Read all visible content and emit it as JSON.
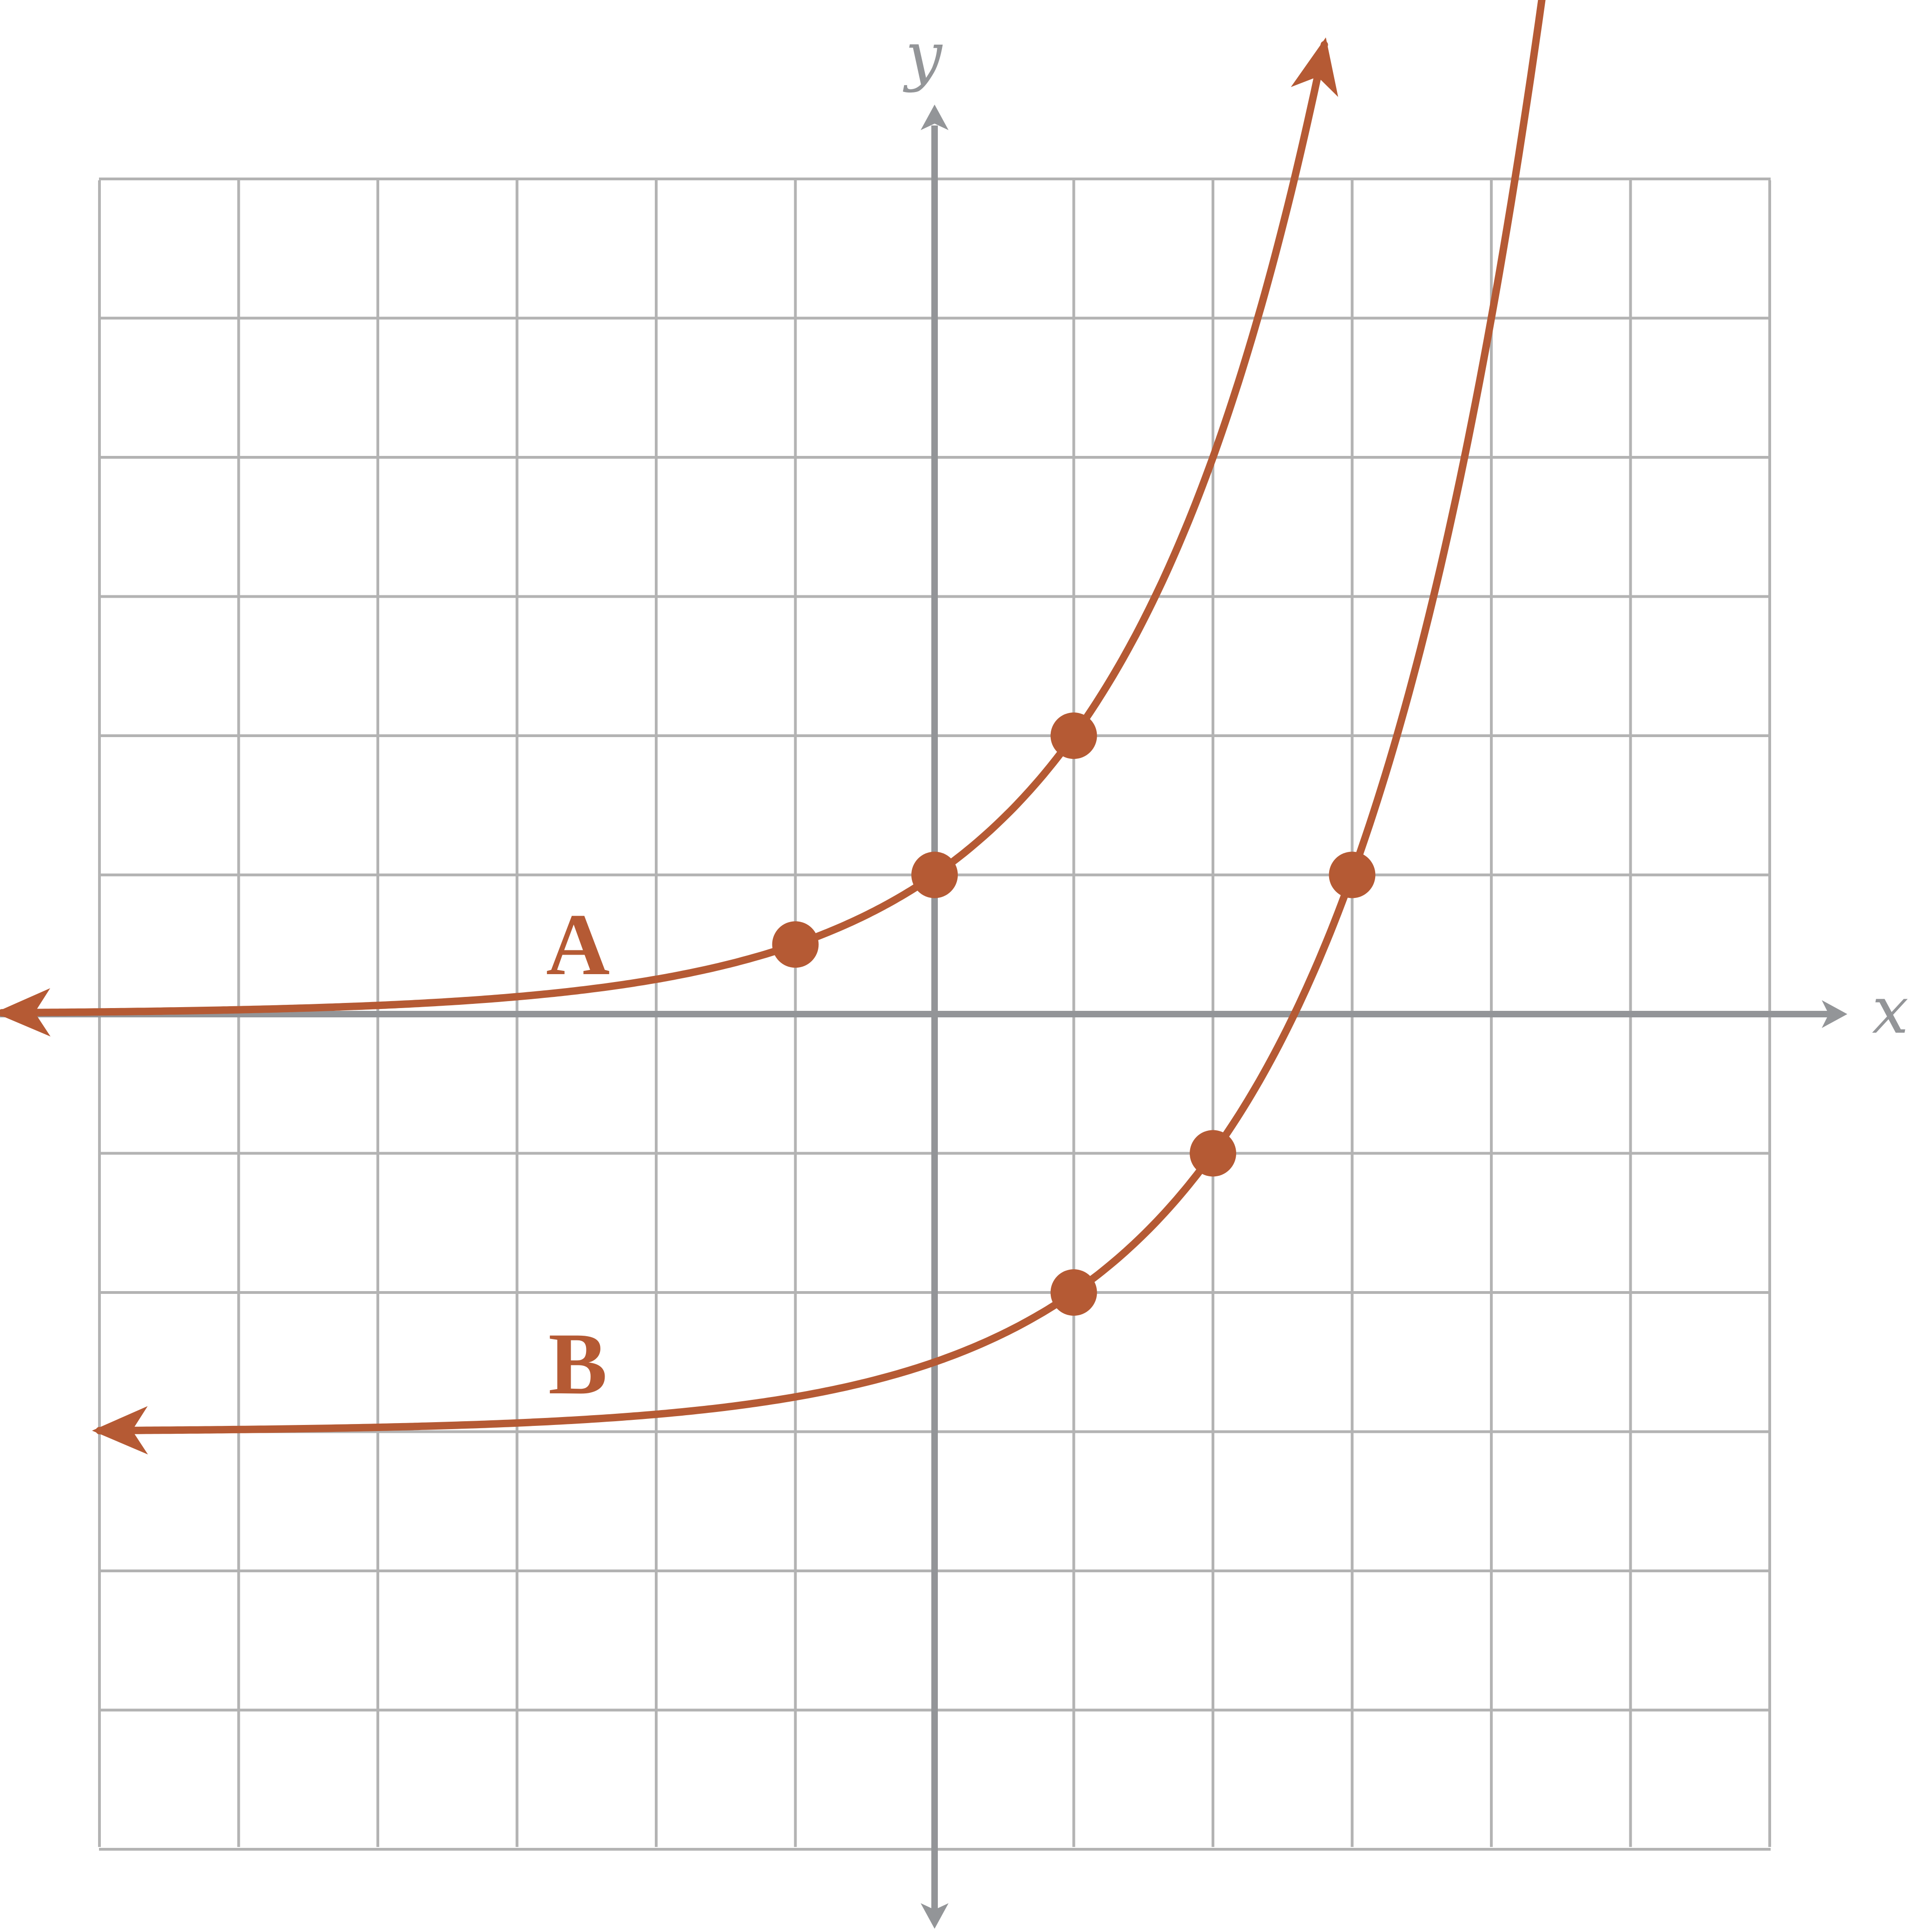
{
  "chart_data": {
    "type": "line",
    "title": "",
    "xlabel": "x",
    "ylabel": "y",
    "xlim": [
      -6,
      6
    ],
    "ylim": [
      -6,
      6
    ],
    "grid": true,
    "tick_labels_shown": false,
    "series": [
      {
        "name": "A",
        "color": "#b55a34",
        "base": 2,
        "h": 0,
        "k": 0,
        "x_range": [
          -6.7,
          2.8
        ],
        "arrows": "both",
        "points": [
          {
            "x": -1,
            "y": 0.5
          },
          {
            "x": 0,
            "y": 1
          },
          {
            "x": 1,
            "y": 2
          }
        ]
      },
      {
        "name": "B",
        "color": "#b55a34",
        "base": 2,
        "h": 1,
        "k": -3,
        "x_range": [
          -6,
          5.3
        ],
        "arrows": "both",
        "points": [
          {
            "x": 1,
            "y": -2
          },
          {
            "x": 2,
            "y": -1
          },
          {
            "x": 3,
            "y": 1
          }
        ]
      }
    ]
  }
}
